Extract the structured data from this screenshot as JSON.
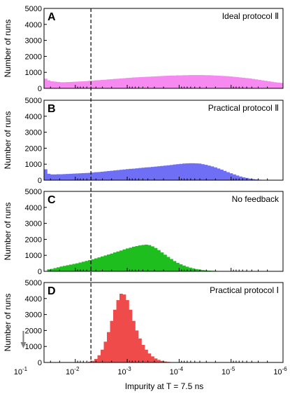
{
  "chart_data": {
    "type": "bar",
    "xlabel": "Impurity at T = 7.5 ns",
    "ylabel": "Number of runs",
    "x_scale": "log-reversed",
    "x_range": [
      0.04,
      1e-06
    ],
    "x_ticks": [
      {
        "base": "10",
        "exp": "-1"
      },
      {
        "base": "10",
        "exp": "-2"
      },
      {
        "base": "10",
        "exp": "-3"
      },
      {
        "base": "10",
        "exp": "-4"
      },
      {
        "base": "10",
        "exp": "-5"
      },
      {
        "base": "10",
        "exp": "-6"
      }
    ],
    "ylim": [
      0,
      5000
    ],
    "y_ticks": [
      "0",
      "1000",
      "2000",
      "3000",
      "4000",
      "5000"
    ],
    "reference_line": {
      "x": 0.005,
      "style": "dashed"
    },
    "annotation": {
      "type": "arrow",
      "x": 0.1,
      "direction": "down",
      "color": "#808080"
    },
    "panels": [
      {
        "letter": "A",
        "title": "Ideal protocol Ⅱ",
        "color": "#f68af0",
        "values": [
          600,
          500,
          440,
          420,
          400,
          380,
          380,
          390,
          400,
          410,
          420,
          430,
          440,
          450,
          470,
          480,
          500,
          510,
          530,
          540,
          560,
          570,
          590,
          600,
          620,
          630,
          650,
          660,
          680,
          690,
          700,
          710,
          720,
          730,
          740,
          750,
          760,
          770,
          780,
          790,
          800,
          800,
          810,
          810,
          820,
          820,
          830,
          830,
          830,
          830,
          830,
          820,
          820,
          810,
          800,
          790,
          780,
          770,
          760,
          740,
          720,
          700,
          680,
          660,
          640,
          620,
          590,
          560,
          530,
          500,
          470,
          440,
          410,
          380,
          360,
          340
        ]
      },
      {
        "letter": "B",
        "title": "Practical protocol Ⅱ",
        "color": "#6f6ff5",
        "values": [
          680,
          400,
          360,
          360,
          370,
          370,
          380,
          390,
          400,
          410,
          420,
          430,
          440,
          450,
          460,
          480,
          500,
          510,
          530,
          550,
          570,
          590,
          610,
          630,
          650,
          670,
          690,
          710,
          720,
          740,
          760,
          780,
          800,
          810,
          830,
          850,
          870,
          890,
          910,
          930,
          950,
          980,
          1000,
          1020,
          1040,
          1050,
          1060,
          1060,
          1050,
          1040,
          1000,
          960,
          910,
          860,
          800,
          730,
          660,
          580,
          500,
          430,
          360,
          290,
          230,
          180,
          140,
          100,
          70,
          50,
          30,
          20,
          12,
          8,
          4,
          2,
          1,
          0
        ]
      },
      {
        "letter": "C",
        "title": "No feedback",
        "color": "#1ebe1e",
        "values": [
          20,
          120,
          150,
          200,
          250,
          300,
          340,
          380,
          420,
          460,
          500,
          550,
          600,
          650,
          700,
          750,
          810,
          870,
          930,
          990,
          1050,
          1110,
          1180,
          1240,
          1300,
          1370,
          1430,
          1480,
          1540,
          1580,
          1620,
          1650,
          1670,
          1640,
          1560,
          1460,
          1330,
          1180,
          1040,
          900,
          770,
          640,
          530,
          440,
          360,
          290,
          230,
          180,
          140,
          110,
          80,
          60,
          45,
          35,
          25,
          18,
          12,
          9,
          6,
          4,
          3,
          2,
          1,
          1,
          0,
          0,
          0,
          0,
          0,
          0,
          0,
          0,
          0,
          0,
          0,
          0
        ]
      },
      {
        "letter": "D",
        "title": "Practical protocol Ⅰ",
        "color": "#f04b4b",
        "values": [
          0,
          0,
          0,
          0,
          0,
          0,
          0,
          0,
          0,
          0,
          0,
          0,
          2,
          10,
          40,
          100,
          220,
          450,
          800,
          1300,
          1900,
          2600,
          3300,
          3900,
          4300,
          4250,
          3900,
          3300,
          2600,
          2000,
          1500,
          1100,
          800,
          560,
          380,
          250,
          160,
          100,
          60,
          35,
          20,
          10,
          5,
          2,
          1,
          0,
          0,
          0,
          0,
          0,
          0,
          0,
          0,
          0,
          0,
          0,
          0,
          0,
          0,
          0,
          0,
          0,
          0,
          0,
          0,
          0,
          0,
          0,
          0,
          0,
          0,
          0,
          0,
          0,
          0,
          0
        ]
      }
    ]
  }
}
